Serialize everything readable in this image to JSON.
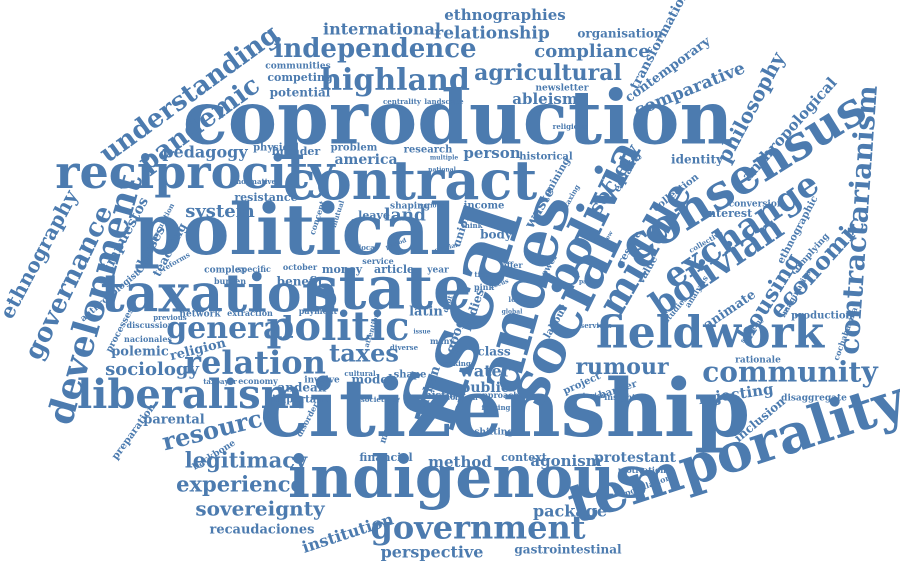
{
  "colors": {
    "word": "#4C7BAF",
    "background": "#FFFFFF"
  },
  "words": {
    "coproduction": "coproduction",
    "citizenship": "citizenship",
    "political": "political",
    "contract": "contract",
    "reciprocity": "reciprocity",
    "taxation": "taxation",
    "state": "state",
    "indigenous": "indigenous",
    "temporality": "temporality",
    "fiscal": "fiscal",
    "social": "social",
    "andes": "andes",
    "bolivia": "bolivia",
    "consensus": "consensus",
    "fieldwork": "fieldwork",
    "liberalism": "liberalism",
    "development": "development",
    "government": "government",
    "independence": "independence",
    "highland": "highland",
    "politic": "politic",
    "relation": "relation",
    "general": "general",
    "middle": "middle",
    "exchange": "exchange",
    "bolivian": "bolivian",
    "community": "community",
    "contractarianism": "contractarianism",
    "governance": "governance",
    "ethnography": "ethnography",
    "understanding": "understanding",
    "pandemic": "pandemic",
    "agricultural": "agricultural",
    "compliance": "compliance",
    "relationship": "relationship",
    "international": "international",
    "ethnographies": "ethnographies",
    "organisation": "organisation",
    "transformation": "transformation",
    "contemporary": "contemporary",
    "comparative": "comparative",
    "philosophy": "philosophy",
    "anthropological": "anthropological",
    "economic": "economic",
    "housing": "housing",
    "society": "society",
    "rumour": "rumour",
    "resource": "resource",
    "legitimacy": "legitimacy",
    "experience": "experience",
    "sovereignty": "sovereignty",
    "recaudaciones": "recaudaciones",
    "institution": "institution",
    "perspective": "perspective",
    "gastrointestinal": "gastrointestinal",
    "package": "package",
    "agonism": "agonism",
    "protestant": "protestant",
    "method": "method",
    "context": "context",
    "financial": "financial",
    "taxes": "taxes",
    "sociology": "sociology",
    "polemic": "polemic",
    "parental": "parental",
    "religion": "religion",
    "system": "system",
    "pedagogy": "pedagogy",
    "america": "america",
    "land": "land",
    "person": "person",
    "water": "water",
    "public": "public",
    "history": "history",
    "rejecting": "rejecting",
    "inclusion": "inclusion",
    "animate": "animate",
    "identity": "identity",
    "ableism": "ableism",
    "potential": "potential",
    "competing": "competing",
    "communities": "communities",
    "newsletter": "newsletter",
    "benefit": "benefit",
    "classes": "classes",
    "teaching": "teaching",
    "impuestos": "impuestos",
    "waste": "waste",
    "mining": "mining",
    "equality": "equality",
    "collection": "collection",
    "rescue": "rescue",
    "interest": "interest",
    "conversion": "conversion",
    "ethnographic": "ethnographic",
    "production": "production",
    "rationale": "rationale",
    "disaggregate": "disaggregate",
    "body": "body",
    "latin": "latin",
    "good": "good",
    "bodies": "bodies",
    "class": "class",
    "urban": "urban",
    "andean": "andean",
    "important": "important",
    "model": "model",
    "shape": "shape",
    "backbone": "backbone",
    "preparation": "preparation",
    "mountain": "mountain",
    "shifting": "shifting",
    "barrier": "barrier",
    "project": "project",
    "motivation": "motivation",
    "population": "population",
    "insight": "insight",
    "value": "value",
    "leave": "leave",
    "resistance": "resistance",
    "physical": "physical",
    "broader": "broader",
    "problem": "problem",
    "research": "research",
    "historical": "historical",
    "income": "income",
    "union": "union",
    "money": "money",
    "article": "article",
    "october": "october",
    "complex": "complex",
    "specific": "specific",
    "burden": "burden",
    "network": "network",
    "extraction": "extraction",
    "payment": "payment",
    "involve": "involve",
    "discussion": "discussion",
    "processes": "processes",
    "nacionales": "nacionales",
    "anthropologist": "anthropologist",
    "previous": "previous",
    "economy": "economy",
    "taxpayer": "taxpayer",
    "service": "service",
    "concept": "concept",
    "shaping": "shaping",
    "centrality": "centrality",
    "landscape": "landscape",
    "religious": "religious",
    "scrutiny": "scrutiny",
    "complying": "complying",
    "imaginaries": "imaginaries",
    "cochabamba": "cochabamba",
    "analysis": "analysis",
    "studies": "studies",
    "collective": "collective",
    "labour": "labour",
    "power": "power",
    "offer": "offer",
    "services": "services",
    "stories": "stories",
    "approach": "approach",
    "forging": "forging",
    "concern": "concern",
    "societies": "societies",
    "disorder": "disorder",
    "attention": "attention",
    "cultural": "cultural",
    "local": "local",
    "diverse": "diverse",
    "year": "year",
    "pink": "pink",
    "tide": "tide",
    "debt": "debt",
    "many": "many",
    "logic": "logic",
    "making": "making",
    "normative": "normative",
    "speculation": "speculation",
    "reforms": "reforms",
    "mutual": "mutual",
    "taxing": "taxing",
    "think": "think",
    "multiple": "multiple",
    "national": "national",
    "various": "various",
    "unique": "unique",
    "period": "period",
    "crucial": "crucial",
    "global": "global",
    "focus": "focus",
    "role": "role",
    "issue": "issue",
    "view": "view",
    "part": "part"
  }
}
